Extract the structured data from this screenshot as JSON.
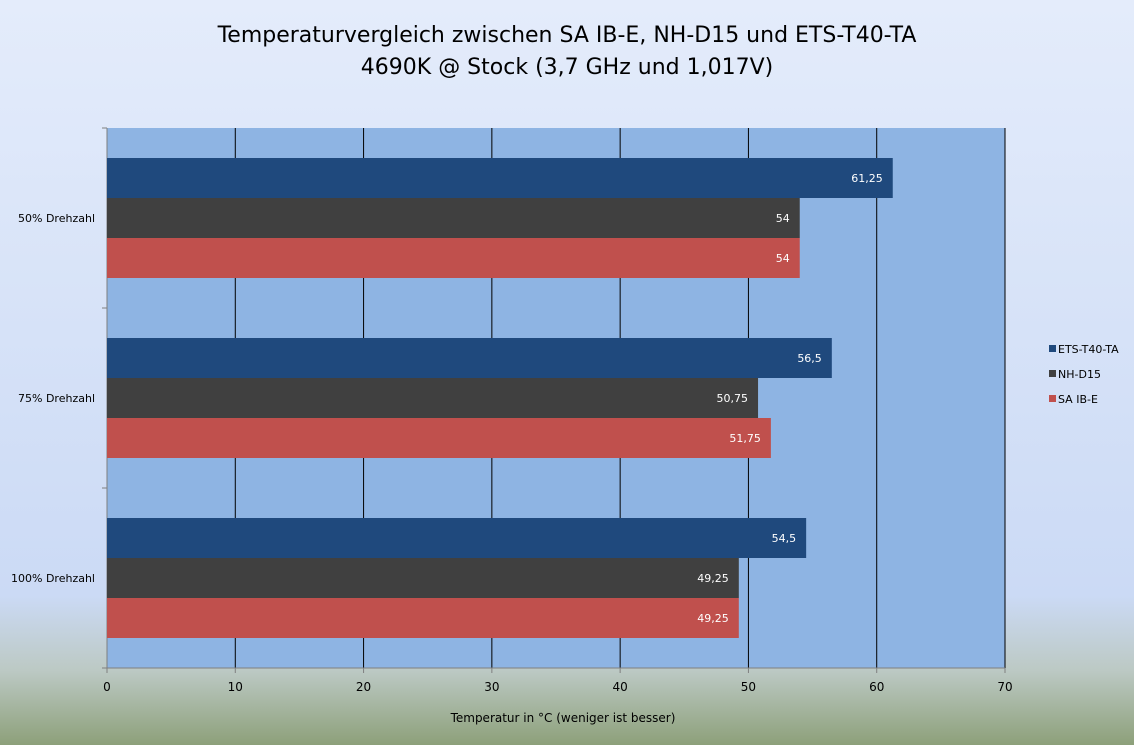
{
  "chart_data": {
    "type": "bar",
    "orientation": "horizontal",
    "title": "Temperaturvergleich zwischen SA IB-E, NH-D15 und ETS-T40-TA",
    "subtitle": "4690K @ Stock (3,7 GHz und 1,017V)",
    "xlabel": "Temperatur in °C (weniger ist besser)",
    "ylabel": "",
    "xlim": [
      0,
      70
    ],
    "x_ticks": [
      "0",
      "10",
      "20",
      "30",
      "40",
      "50",
      "60",
      "70"
    ],
    "categories": [
      "50% Drehzahl",
      "75% Drehzahl",
      "100% Drehzahl"
    ],
    "series": [
      {
        "name": "ETS-T40-TA",
        "color": "#1f497d",
        "values": [
          61.25,
          56.5,
          54.5
        ],
        "labels": [
          "61,25",
          "56,5",
          "54,5"
        ]
      },
      {
        "name": "NH-D15",
        "color": "#404040",
        "values": [
          54,
          50.75,
          49.25
        ],
        "labels": [
          "54",
          "50,75",
          "49,25"
        ]
      },
      {
        "name": "SA IB-E",
        "color": "#c0504d",
        "values": [
          54,
          51.75,
          49.25
        ],
        "labels": [
          "54",
          "51,75",
          "49,25"
        ]
      }
    ],
    "grid": true,
    "legend_position": "right",
    "colors": {
      "plot_background": "#8eb4e3",
      "page_background": "#dbe5f8",
      "gridline": "#000000"
    }
  }
}
